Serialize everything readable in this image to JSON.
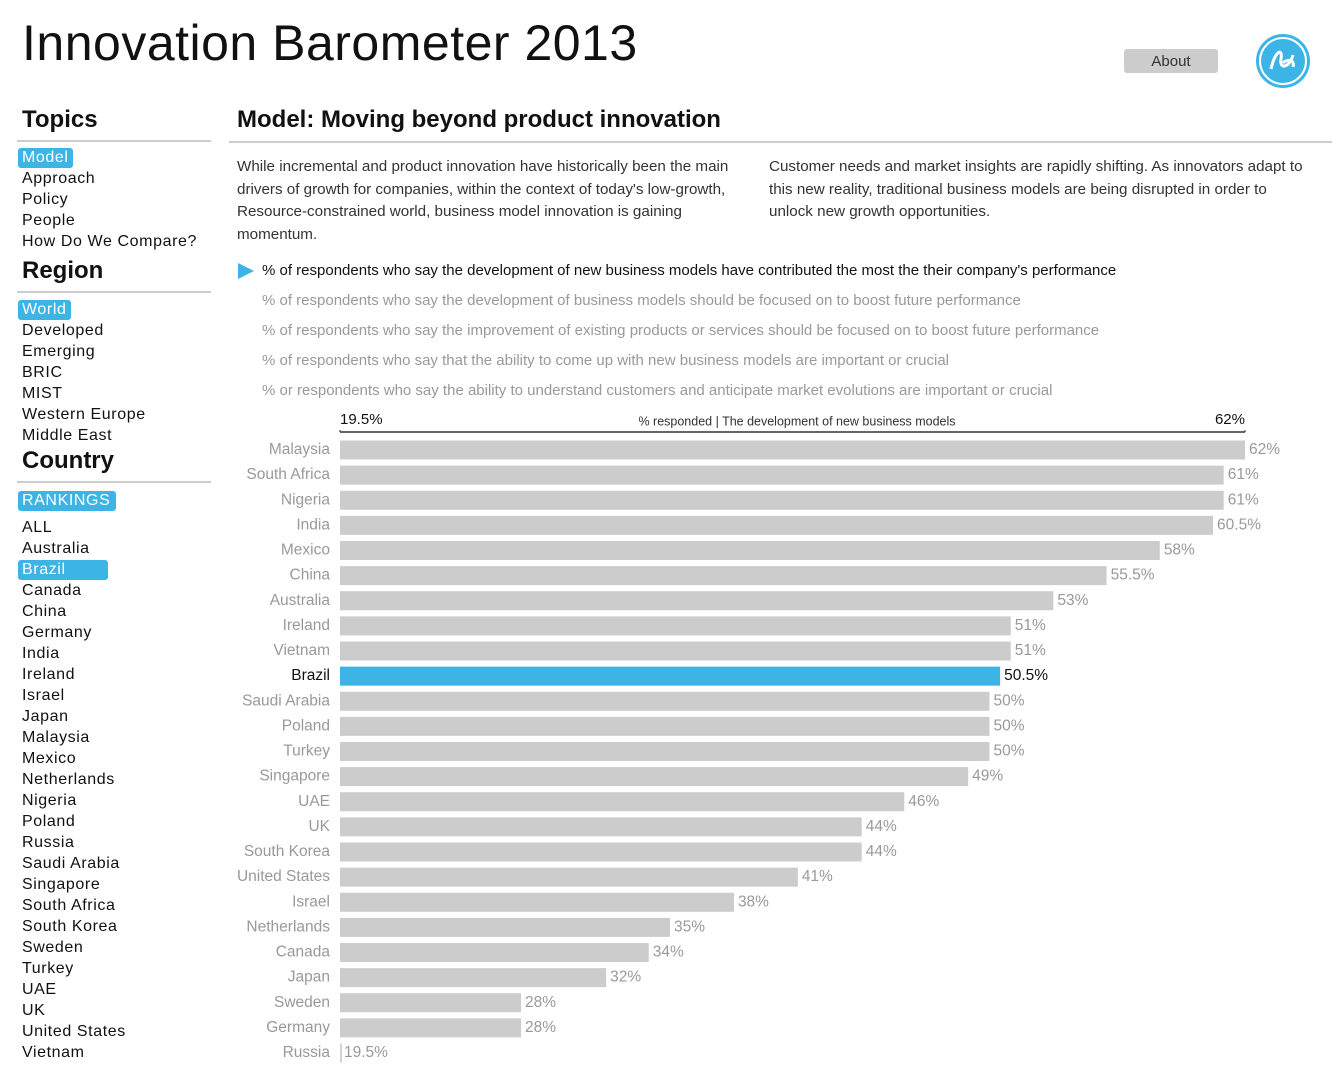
{
  "header": {
    "title": "Innovation Barometer 2013",
    "about": "About"
  },
  "sidebar": {
    "topics": {
      "heading": "Topics",
      "items": [
        "Model",
        "Approach",
        "Policy",
        "People",
        "How Do We Compare?"
      ]
    },
    "region": {
      "heading": "Region",
      "items": [
        "World",
        "Developed",
        "Emerging",
        "BRIC",
        "MIST",
        "Western Europe",
        "Middle East"
      ]
    },
    "country": {
      "heading": "Country",
      "badge": "RANKINGS",
      "items": [
        "ALL",
        "Australia",
        "Brazil",
        "Canada",
        "China",
        "Germany",
        "India",
        "Ireland",
        "Israel",
        "Japan",
        "Malaysia",
        "Mexico",
        "Netherlands",
        "Nigeria",
        "Poland",
        "Russia",
        "Saudi Arabia",
        "Singapore",
        "South Africa",
        "South Korea",
        "Sweden",
        "Turkey",
        "UAE",
        "UK",
        "United States",
        "Vietnam"
      ]
    }
  },
  "main": {
    "heading": "Model: Moving beyond product innovation",
    "paragraphs": [
      "While incremental and product innovation have historically been the main drivers of growth for companies, within the context of today's low-growth, Resource-constrained world, business model innovation is gaining momentum.",
      "Customer needs and market insights are rapidly shifting. As innovators adapt to this new reality, traditional business models are being disrupted in order to unlock new growth opportunities."
    ],
    "measures": [
      "% of respondents who say the development of new business models have contributed the most the their company's performance",
      "% of respondents who say the development of business models should be focused on to boost future performance",
      "% of respondents who say the improvement of existing products or services should be focused on to boost future performance",
      "% of respondents who say that the ability to come up with new business models are important or crucial",
      "% or respondents who say the ability to understand customers and anticipate market evolutions are important or crucial"
    ]
  },
  "chart_data": {
    "type": "bar",
    "orientation": "horizontal",
    "axis_title": "% responded  |  The development of new business models",
    "categories": [
      "Malaysia",
      "South Africa",
      "Nigeria",
      "India",
      "Mexico",
      "China",
      "Australia",
      "Ireland",
      "Vietnam",
      "Brazil",
      "Saudi Arabia",
      "Poland",
      "Turkey",
      "Singapore",
      "UAE",
      "UK",
      "South Korea",
      "United States",
      "Israel",
      "Netherlands",
      "Canada",
      "Japan",
      "Sweden",
      "Germany",
      "Russia"
    ],
    "values": [
      62,
      61,
      61,
      60.5,
      58,
      55.5,
      53,
      51,
      51,
      50.5,
      50,
      50,
      50,
      49,
      46,
      44,
      44,
      41,
      38,
      35,
      34,
      32,
      28,
      28,
      19.5
    ],
    "value_labels": [
      "62%",
      "61%",
      "61%",
      "60.5%",
      "58%",
      "55.5%",
      "53%",
      "51%",
      "51%",
      "50.5%",
      "50%",
      "50%",
      "50%",
      "49%",
      "46%",
      "44%",
      "44%",
      "41%",
      "38%",
      "35%",
      "34%",
      "32%",
      "28%",
      "28%",
      "19.5%"
    ],
    "colors": [
      "#cccccc",
      "#cccccc",
      "#cccccc",
      "#cccccc",
      "#cccccc",
      "#cccccc",
      "#cccccc",
      "#cccccc",
      "#cccccc",
      "#3cb4e5",
      "#cccccc",
      "#cccccc",
      "#cccccc",
      "#cccccc",
      "#cccccc",
      "#cccccc",
      "#cccccc",
      "#cccccc",
      "#cccccc",
      "#cccccc",
      "#cccccc",
      "#cccccc",
      "#cccccc",
      "#cccccc",
      "#cccccc"
    ],
    "xlim": [
      19.5,
      62
    ],
    "xticks": [
      {
        "value": 19.5,
        "label": "19.5%"
      },
      {
        "value": 62,
        "label": "62%"
      }
    ]
  }
}
